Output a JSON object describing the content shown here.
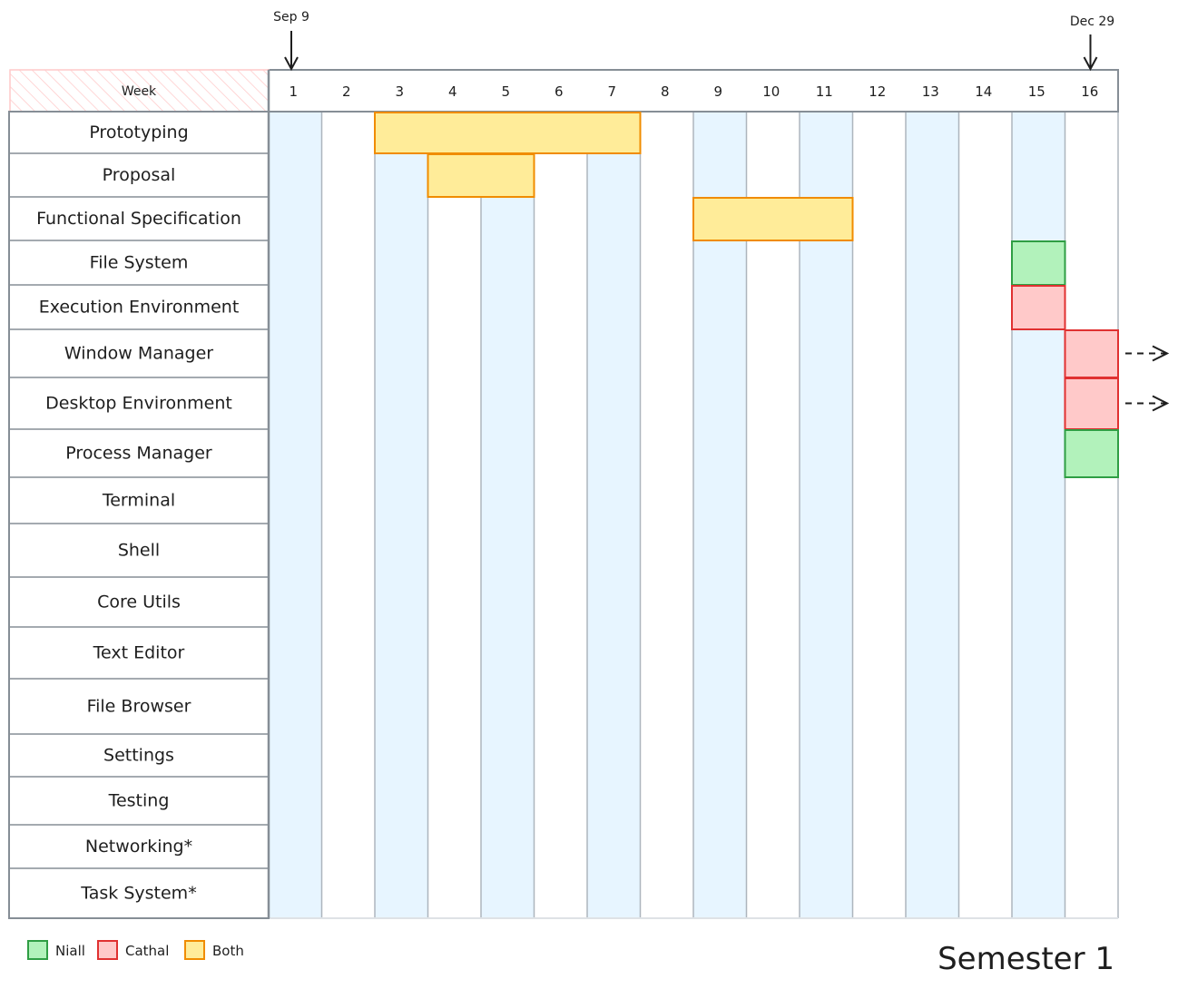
{
  "header": {
    "week_label": "Week",
    "weeks": [
      "1",
      "2",
      "3",
      "4",
      "5",
      "6",
      "7",
      "8",
      "9",
      "10",
      "11",
      "12",
      "13",
      "14",
      "15",
      "16"
    ]
  },
  "markers": [
    {
      "label": "Sep 9",
      "week": 1
    },
    {
      "label": "Dec 29",
      "week": 16
    }
  ],
  "tasks": [
    {
      "name": "Prototyping",
      "bars": [
        {
          "start": 3,
          "end": 7,
          "owner": "both"
        }
      ]
    },
    {
      "name": "Proposal",
      "bars": [
        {
          "start": 4,
          "end": 5,
          "owner": "both"
        }
      ]
    },
    {
      "name": "Functional Specification",
      "bars": [
        {
          "start": 9,
          "end": 11,
          "owner": "both"
        }
      ]
    },
    {
      "name": "File System",
      "bars": [
        {
          "start": 15,
          "end": 15,
          "owner": "niall"
        }
      ]
    },
    {
      "name": "Execution Environment",
      "bars": [
        {
          "start": 15,
          "end": 15,
          "owner": "cathal"
        }
      ]
    },
    {
      "name": "Window Manager",
      "bars": [
        {
          "start": 16,
          "end": 16,
          "owner": "cathal",
          "continues": true
        }
      ]
    },
    {
      "name": "Desktop Environment",
      "bars": [
        {
          "start": 16,
          "end": 16,
          "owner": "cathal",
          "continues": true
        }
      ]
    },
    {
      "name": "Process Manager",
      "bars": [
        {
          "start": 16,
          "end": 16,
          "owner": "niall"
        }
      ]
    },
    {
      "name": "Terminal",
      "bars": []
    },
    {
      "name": "Shell",
      "bars": []
    },
    {
      "name": "Core Utils",
      "bars": []
    },
    {
      "name": "Text Editor",
      "bars": []
    },
    {
      "name": "File Browser",
      "bars": []
    },
    {
      "name": "Settings",
      "bars": []
    },
    {
      "name": "Testing",
      "bars": []
    },
    {
      "name": "Networking*",
      "bars": []
    },
    {
      "name": "Task System*",
      "bars": []
    }
  ],
  "legend": [
    {
      "key": "niall",
      "label": "Niall",
      "fill": "#b2f2bb",
      "stroke": "#2f9e44"
    },
    {
      "key": "cathal",
      "label": "Cathal",
      "fill": "#ffc9c9",
      "stroke": "#e03131"
    },
    {
      "key": "both",
      "label": "Both",
      "fill": "#ffec99",
      "stroke": "#f08c00"
    }
  ],
  "colors": {
    "odd_week_fill": "#e7f5ff",
    "grid": "#adb5bd",
    "label_border": "#868e96",
    "week_header_hatch": "#ffc9c9"
  },
  "title": "Semester 1"
}
